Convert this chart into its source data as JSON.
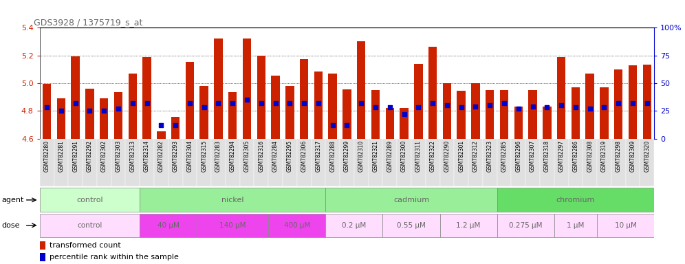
{
  "title": "GDS3928 / 1375719_s_at",
  "ylim_left": [
    4.6,
    5.4
  ],
  "ylim_right": [
    0,
    100
  ],
  "yticks_left": [
    4.6,
    4.8,
    5.0,
    5.2,
    5.4
  ],
  "yticks_right": [
    0,
    25,
    50,
    75,
    100
  ],
  "samples": [
    "GSM782280",
    "GSM782281",
    "GSM782291",
    "GSM782292",
    "GSM782302",
    "GSM782303",
    "GSM782313",
    "GSM782314",
    "GSM782282",
    "GSM782293",
    "GSM782304",
    "GSM782315",
    "GSM782283",
    "GSM782294",
    "GSM782305",
    "GSM782316",
    "GSM782284",
    "GSM782295",
    "GSM782306",
    "GSM782317",
    "GSM782288",
    "GSM782299",
    "GSM782310",
    "GSM782321",
    "GSM782289",
    "GSM782300",
    "GSM782311",
    "GSM782322",
    "GSM782290",
    "GSM782301",
    "GSM782312",
    "GSM782323",
    "GSM782285",
    "GSM782296",
    "GSM782307",
    "GSM782318",
    "GSM782297",
    "GSM782286",
    "GSM782308",
    "GSM782319",
    "GSM782298",
    "GSM782309",
    "GSM782320"
  ],
  "bar_values": [
    4.995,
    4.89,
    5.195,
    4.96,
    4.89,
    4.935,
    5.07,
    5.19,
    4.655,
    4.755,
    5.155,
    4.98,
    5.32,
    4.935,
    5.32,
    5.2,
    5.055,
    4.98,
    5.175,
    5.085,
    5.07,
    4.955,
    5.3,
    4.95,
    4.82,
    4.82,
    5.14,
    5.265,
    5.0,
    4.945,
    5.0,
    4.95,
    4.95,
    4.83,
    4.95,
    4.83,
    5.19,
    4.97,
    5.07,
    4.97,
    5.1,
    5.13,
    5.135
  ],
  "percentile_values": [
    28,
    25,
    32,
    25,
    25,
    27,
    32,
    32,
    12,
    12,
    32,
    28,
    32,
    32,
    35,
    32,
    32,
    32,
    32,
    32,
    12,
    12,
    32,
    28,
    28,
    22,
    28,
    32,
    30,
    28,
    29,
    30,
    32,
    27,
    29,
    28,
    30,
    28,
    27,
    28,
    32,
    32,
    32
  ],
  "bar_color": "#cc2200",
  "dot_color": "#0000cc",
  "baseline": 4.6,
  "agent_groups": [
    {
      "label": "control",
      "start": 0,
      "end": 6,
      "color": "#ccffcc"
    },
    {
      "label": "nickel",
      "start": 7,
      "end": 19,
      "color": "#99ee99"
    },
    {
      "label": "cadmium",
      "start": 20,
      "end": 31,
      "color": "#99ee99"
    },
    {
      "label": "chromium",
      "start": 32,
      "end": 42,
      "color": "#66dd66"
    }
  ],
  "dose_groups": [
    {
      "label": "control",
      "start": 0,
      "end": 6,
      "color": "#ffddff"
    },
    {
      "label": "40 μM",
      "start": 7,
      "end": 10,
      "color": "#ee44ee"
    },
    {
      "label": "140 μM",
      "start": 11,
      "end": 15,
      "color": "#ee44ee"
    },
    {
      "label": "400 μM",
      "start": 16,
      "end": 19,
      "color": "#ee44ee"
    },
    {
      "label": "0.2 μM",
      "start": 20,
      "end": 23,
      "color": "#ffddff"
    },
    {
      "label": "0.55 μM",
      "start": 24,
      "end": 27,
      "color": "#ffddff"
    },
    {
      "label": "1.2 μM",
      "start": 28,
      "end": 31,
      "color": "#ffddff"
    },
    {
      "label": "0.275 μM",
      "start": 32,
      "end": 35,
      "color": "#ffddff"
    },
    {
      "label": "1 μM",
      "start": 36,
      "end": 38,
      "color": "#ffddff"
    },
    {
      "label": "10 μM",
      "start": 39,
      "end": 42,
      "color": "#ffddff"
    }
  ],
  "bg_color": "#ffffff",
  "title_color": "#666666",
  "axis_label_color": "#cc2200",
  "right_axis_color": "#0000cc",
  "xlabel_bg": "#dddddd"
}
